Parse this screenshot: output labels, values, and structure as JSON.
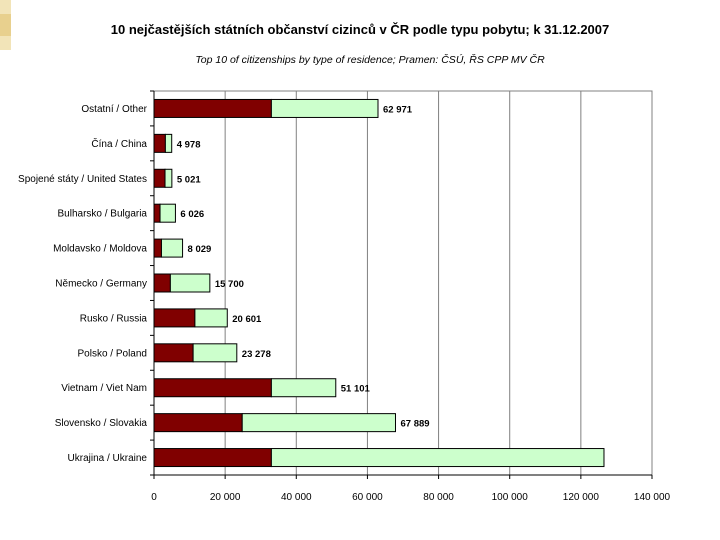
{
  "chart_data": {
    "type": "bar",
    "orientation": "horizontal",
    "stacked": true,
    "title": "10 nejčastějších státních občanství cizinců v ČR podle typu pobytu; k 31.12.2007",
    "subtitle": "Top 10 of citizenships by type of residence; Pramen: ČSÚ, ŘS CPP MV ČR",
    "categories": [
      "Ostatní / Other",
      "Čína / China",
      "Spojené státy / United States",
      "Bulharsko / Bulgaria",
      "Moldavsko / Moldova",
      "Německo / Germany",
      "Rusko / Russia",
      "Polsko / Poland",
      "Vietnam / Viet Nam",
      "Slovensko / Slovakia",
      "Ukrajina / Ukraine"
    ],
    "series": [
      {
        "values": [
          33000,
          3200,
          3100,
          1700,
          2100,
          4600,
          11500,
          11000,
          33000,
          24800,
          33000
        ]
      },
      {
        "values": [
          29971,
          1778,
          1921,
          4326,
          5929,
          11100,
          9101,
          12278,
          18101,
          43089,
          93500
        ]
      }
    ],
    "totals": [
      62971,
      4978,
      5021,
      6026,
      8029,
      15700,
      20601,
      23278,
      51101,
      67889,
      126500
    ],
    "total_labels": [
      "62 971",
      "4 978",
      "5 021",
      "6 026",
      "8 029",
      "15 700",
      "20 601",
      "23 278",
      "51 101",
      "67 889",
      ""
    ],
    "xlim": [
      0,
      140000
    ],
    "xticks": [
      0,
      20000,
      40000,
      60000,
      80000,
      100000,
      120000,
      140000
    ],
    "xtick_labels": [
      "0",
      "20 000",
      "40 000",
      "60 000",
      "80 000",
      "100 000",
      "120 000",
      "140 000"
    ],
    "grid": true,
    "colors": {
      "series1": "#800000",
      "series2": "#ccffcc",
      "edge": "#000000",
      "grid": "#808080"
    }
  }
}
